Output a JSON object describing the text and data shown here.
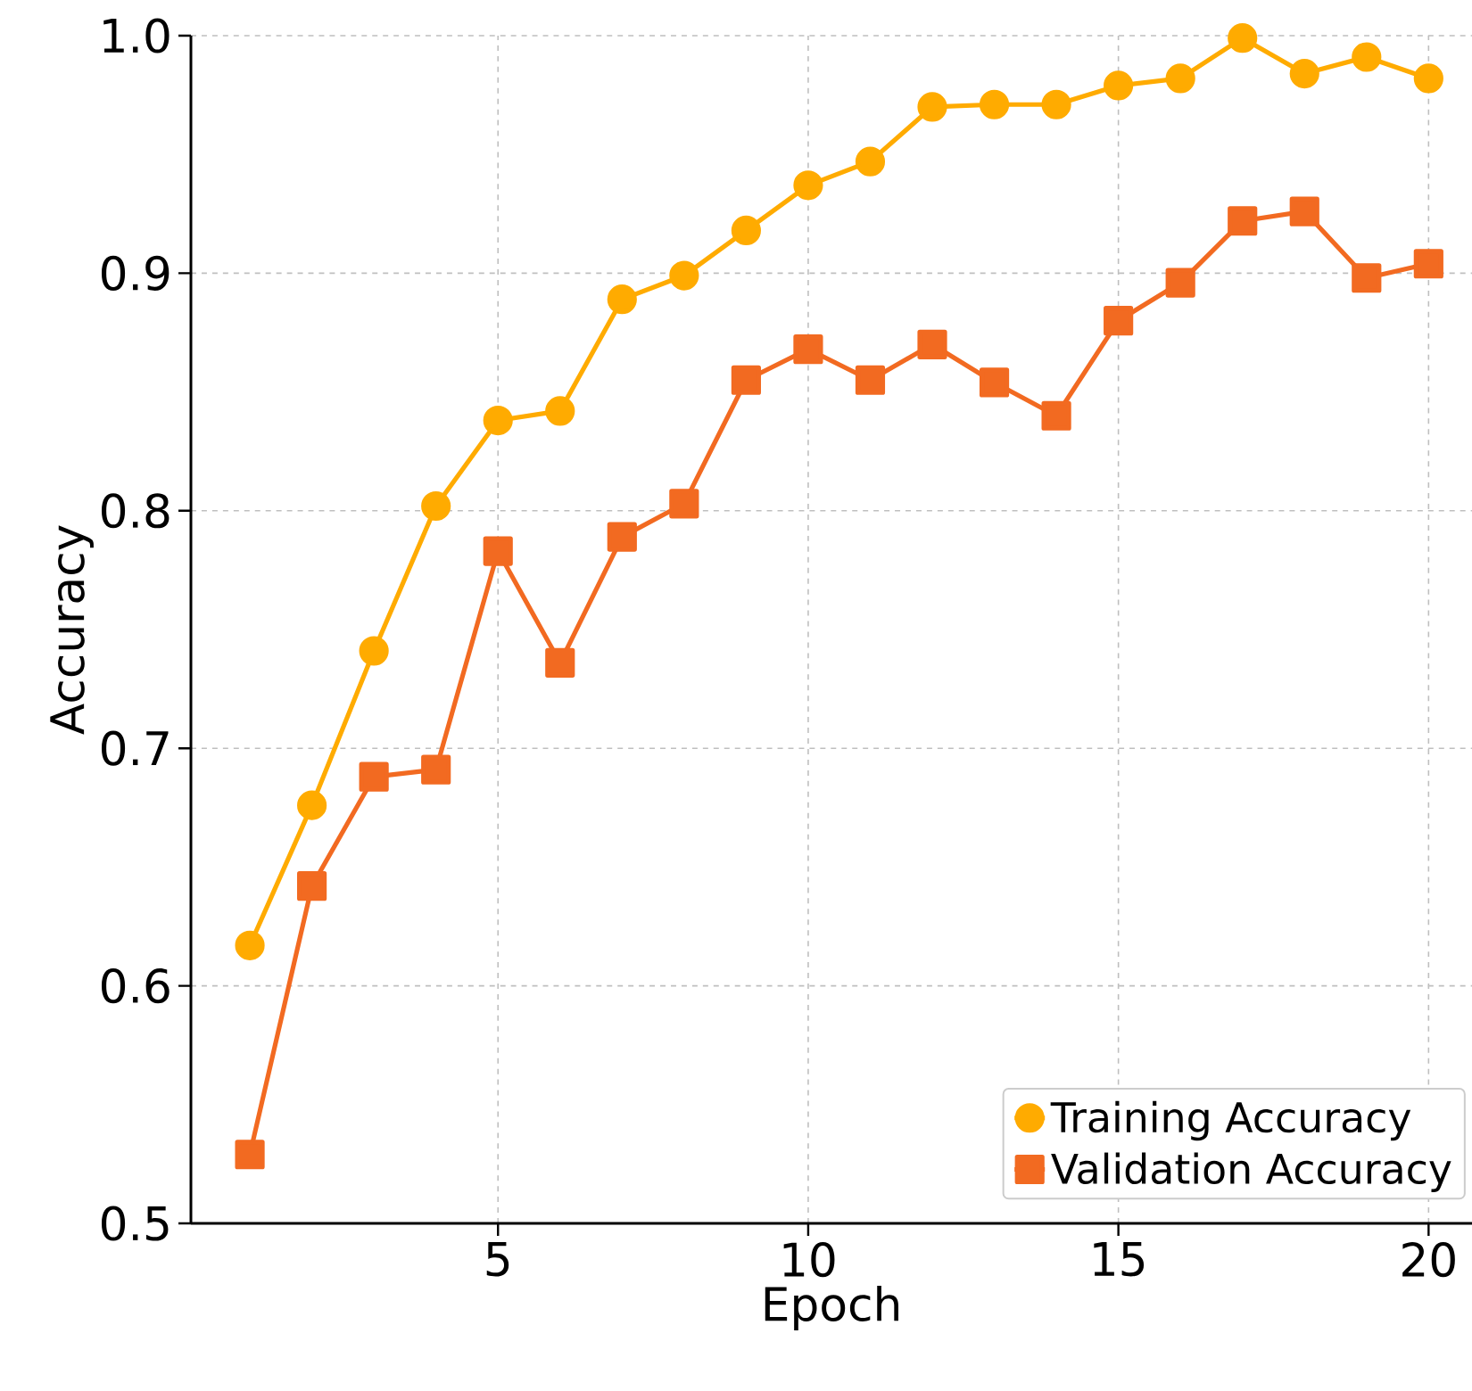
{
  "chart_data": {
    "type": "line",
    "xlabel": "Epoch",
    "ylabel": "Accuracy",
    "x": [
      1,
      2,
      3,
      4,
      5,
      6,
      7,
      8,
      9,
      10,
      11,
      12,
      13,
      14,
      15,
      16,
      17,
      18,
      19,
      20
    ],
    "series": [
      {
        "name": "Training Accuracy",
        "color": "#ffab00",
        "marker": "circle",
        "values": [
          0.617,
          0.676,
          0.741,
          0.802,
          0.838,
          0.842,
          0.889,
          0.899,
          0.918,
          0.937,
          0.947,
          0.97,
          0.971,
          0.971,
          0.979,
          0.982,
          0.999,
          0.984,
          0.991,
          0.982
        ]
      },
      {
        "name": "Validation Accuracy",
        "color": "#f26a21",
        "marker": "square",
        "values": [
          0.529,
          0.642,
          0.688,
          0.691,
          0.783,
          0.736,
          0.789,
          0.803,
          0.855,
          0.868,
          0.855,
          0.87,
          0.854,
          0.84,
          0.88,
          0.896,
          0.922,
          0.926,
          0.898,
          0.904
        ]
      }
    ],
    "xlim": [
      0.05,
      20.7
    ],
    "ylim": [
      0.5,
      1.0
    ],
    "xticks": [
      5,
      10,
      15,
      20
    ],
    "yticks": [
      {
        "value": 0.5,
        "label": "0.5"
      },
      {
        "value": 0.6,
        "label": "0.6"
      },
      {
        "value": 0.7,
        "label": "0.7"
      },
      {
        "value": 0.8,
        "label": "0.8"
      },
      {
        "value": 0.9,
        "label": "0.9"
      },
      {
        "value": 1.0,
        "label": "1.0"
      }
    ],
    "grid": true,
    "legend": "bottom right",
    "line_style": "solid"
  }
}
